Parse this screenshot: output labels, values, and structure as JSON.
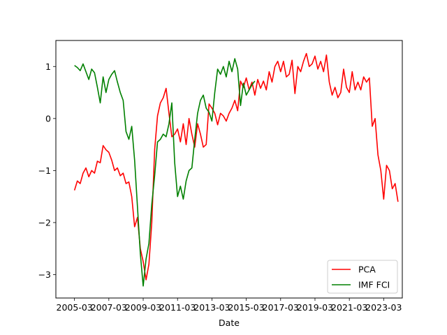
{
  "chart_data": {
    "type": "line",
    "xlabel": "Date",
    "ylabel": "",
    "x_range": [
      "2004-02",
      "2024-04"
    ],
    "ylim": [
      -3.45,
      1.5
    ],
    "x_ticks": [
      "2005-03",
      "2007-03",
      "2009-03",
      "2011-03",
      "2013-03",
      "2015-03",
      "2017-03",
      "2019-03",
      "2021-03",
      "2023-03"
    ],
    "y_ticks": [
      1,
      0,
      -1,
      -2,
      -3
    ],
    "y_tick_labels": [
      "1",
      "0",
      "−1",
      "−2",
      "−3"
    ],
    "grid": false,
    "legend_position": "lower-right",
    "series": [
      {
        "name": "PCA",
        "color": "#ff0000",
        "points": [
          [
            "2005-03",
            -1.38
          ],
          [
            "2005-05",
            -1.2
          ],
          [
            "2005-07",
            -1.25
          ],
          [
            "2005-09",
            -1.05
          ],
          [
            "2005-11",
            -0.95
          ],
          [
            "2006-01",
            -1.12
          ],
          [
            "2006-03",
            -1.0
          ],
          [
            "2006-05",
            -1.05
          ],
          [
            "2006-07",
            -0.82
          ],
          [
            "2006-09",
            -0.85
          ],
          [
            "2006-11",
            -0.52
          ],
          [
            "2007-01",
            -0.6
          ],
          [
            "2007-03",
            -0.65
          ],
          [
            "2007-05",
            -0.8
          ],
          [
            "2007-07",
            -1.0
          ],
          [
            "2007-09",
            -0.95
          ],
          [
            "2007-11",
            -1.1
          ],
          [
            "2008-01",
            -1.05
          ],
          [
            "2008-03",
            -1.25
          ],
          [
            "2008-05",
            -1.22
          ],
          [
            "2008-07",
            -1.5
          ],
          [
            "2008-09",
            -2.08
          ],
          [
            "2008-11",
            -1.9
          ],
          [
            "2009-01",
            -2.5
          ],
          [
            "2009-03",
            -2.75
          ],
          [
            "2009-05",
            -3.1
          ],
          [
            "2009-07",
            -2.8
          ],
          [
            "2009-09",
            -2.0
          ],
          [
            "2009-11",
            -0.6
          ],
          [
            "2010-01",
            0.05
          ],
          [
            "2010-03",
            0.3
          ],
          [
            "2010-05",
            0.4
          ],
          [
            "2010-07",
            0.58
          ],
          [
            "2010-09",
            0.1
          ],
          [
            "2010-11",
            -0.35
          ],
          [
            "2011-01",
            -0.3
          ],
          [
            "2011-03",
            -0.2
          ],
          [
            "2011-05",
            -0.45
          ],
          [
            "2011-07",
            -0.1
          ],
          [
            "2011-09",
            -0.5
          ],
          [
            "2011-11",
            0.0
          ],
          [
            "2012-01",
            -0.3
          ],
          [
            "2012-03",
            -0.55
          ],
          [
            "2012-05",
            -0.1
          ],
          [
            "2012-07",
            -0.3
          ],
          [
            "2012-09",
            -0.55
          ],
          [
            "2012-11",
            -0.5
          ],
          [
            "2013-01",
            0.28
          ],
          [
            "2013-03",
            0.2
          ],
          [
            "2013-05",
            0.1
          ],
          [
            "2013-07",
            -0.12
          ],
          [
            "2013-09",
            0.1
          ],
          [
            "2013-11",
            0.05
          ],
          [
            "2014-01",
            -0.05
          ],
          [
            "2014-03",
            0.1
          ],
          [
            "2014-05",
            0.2
          ],
          [
            "2014-07",
            0.35
          ],
          [
            "2014-09",
            0.15
          ],
          [
            "2014-11",
            0.72
          ],
          [
            "2015-01",
            0.6
          ],
          [
            "2015-03",
            0.78
          ],
          [
            "2015-05",
            0.55
          ],
          [
            "2015-07",
            0.7
          ],
          [
            "2015-09",
            0.45
          ],
          [
            "2015-11",
            0.75
          ],
          [
            "2016-01",
            0.58
          ],
          [
            "2016-03",
            0.72
          ],
          [
            "2016-05",
            0.55
          ],
          [
            "2016-07",
            0.9
          ],
          [
            "2016-09",
            0.7
          ],
          [
            "2016-11",
            1.0
          ],
          [
            "2017-01",
            1.1
          ],
          [
            "2017-03",
            0.9
          ],
          [
            "2017-05",
            1.1
          ],
          [
            "2017-07",
            0.8
          ],
          [
            "2017-09",
            0.85
          ],
          [
            "2017-11",
            1.12
          ],
          [
            "2018-01",
            0.48
          ],
          [
            "2018-03",
            1.0
          ],
          [
            "2018-05",
            0.9
          ],
          [
            "2018-07",
            1.1
          ],
          [
            "2018-09",
            1.25
          ],
          [
            "2018-11",
            1.0
          ],
          [
            "2019-01",
            1.05
          ],
          [
            "2019-03",
            1.2
          ],
          [
            "2019-05",
            0.95
          ],
          [
            "2019-07",
            1.1
          ],
          [
            "2019-09",
            0.9
          ],
          [
            "2019-11",
            1.22
          ],
          [
            "2020-01",
            0.7
          ],
          [
            "2020-03",
            0.45
          ],
          [
            "2020-05",
            0.6
          ],
          [
            "2020-07",
            0.4
          ],
          [
            "2020-09",
            0.5
          ],
          [
            "2020-11",
            0.95
          ],
          [
            "2021-01",
            0.6
          ],
          [
            "2021-03",
            0.5
          ],
          [
            "2021-05",
            0.9
          ],
          [
            "2021-07",
            0.55
          ],
          [
            "2021-09",
            0.7
          ],
          [
            "2021-11",
            0.55
          ],
          [
            "2022-01",
            0.8
          ],
          [
            "2022-03",
            0.7
          ],
          [
            "2022-05",
            0.78
          ],
          [
            "2022-07",
            -0.15
          ],
          [
            "2022-09",
            0.0
          ],
          [
            "2022-11",
            -0.7
          ],
          [
            "2023-01",
            -1.0
          ],
          [
            "2023-03",
            -1.55
          ],
          [
            "2023-05",
            -0.9
          ],
          [
            "2023-07",
            -1.0
          ],
          [
            "2023-09",
            -1.35
          ],
          [
            "2023-11",
            -1.25
          ],
          [
            "2024-01",
            -1.6
          ]
        ]
      },
      {
        "name": "IMF FCI",
        "color": "#008000",
        "points": [
          [
            "2005-03",
            1.02
          ],
          [
            "2005-05",
            0.98
          ],
          [
            "2005-07",
            0.92
          ],
          [
            "2005-09",
            1.05
          ],
          [
            "2005-11",
            0.9
          ],
          [
            "2006-01",
            0.75
          ],
          [
            "2006-03",
            0.95
          ],
          [
            "2006-05",
            0.88
          ],
          [
            "2006-07",
            0.6
          ],
          [
            "2006-09",
            0.3
          ],
          [
            "2006-11",
            0.8
          ],
          [
            "2007-01",
            0.5
          ],
          [
            "2007-03",
            0.75
          ],
          [
            "2007-05",
            0.85
          ],
          [
            "2007-07",
            0.92
          ],
          [
            "2007-09",
            0.7
          ],
          [
            "2007-11",
            0.5
          ],
          [
            "2008-01",
            0.35
          ],
          [
            "2008-03",
            -0.25
          ],
          [
            "2008-05",
            -0.4
          ],
          [
            "2008-07",
            -0.15
          ],
          [
            "2008-09",
            -0.8
          ],
          [
            "2008-11",
            -1.7
          ],
          [
            "2009-01",
            -2.6
          ],
          [
            "2009-03",
            -3.22
          ],
          [
            "2009-05",
            -2.7
          ],
          [
            "2009-07",
            -2.4
          ],
          [
            "2009-09",
            -1.65
          ],
          [
            "2009-11",
            -1.1
          ],
          [
            "2010-01",
            -0.45
          ],
          [
            "2010-03",
            -0.4
          ],
          [
            "2010-05",
            -0.3
          ],
          [
            "2010-07",
            -0.35
          ],
          [
            "2010-09",
            -0.1
          ],
          [
            "2010-11",
            0.3
          ],
          [
            "2011-01",
            -0.85
          ],
          [
            "2011-03",
            -1.5
          ],
          [
            "2011-05",
            -1.3
          ],
          [
            "2011-07",
            -1.55
          ],
          [
            "2011-09",
            -1.2
          ],
          [
            "2011-11",
            -1.0
          ],
          [
            "2012-01",
            -0.95
          ],
          [
            "2012-03",
            -0.4
          ],
          [
            "2012-05",
            0.1
          ],
          [
            "2012-07",
            0.35
          ],
          [
            "2012-09",
            0.45
          ],
          [
            "2012-11",
            0.2
          ],
          [
            "2013-01",
            0.12
          ],
          [
            "2013-03",
            -0.05
          ],
          [
            "2013-05",
            0.5
          ],
          [
            "2013-07",
            0.95
          ],
          [
            "2013-09",
            0.85
          ],
          [
            "2013-11",
            1.0
          ],
          [
            "2014-01",
            0.8
          ],
          [
            "2014-03",
            1.1
          ],
          [
            "2014-05",
            0.9
          ],
          [
            "2014-07",
            1.15
          ],
          [
            "2014-09",
            0.95
          ],
          [
            "2014-11",
            0.25
          ],
          [
            "2015-01",
            0.68
          ],
          [
            "2015-03",
            0.45
          ],
          [
            "2015-05",
            0.55
          ],
          [
            "2015-07",
            0.65
          ],
          [
            "2015-09",
            0.72
          ]
        ]
      }
    ]
  }
}
